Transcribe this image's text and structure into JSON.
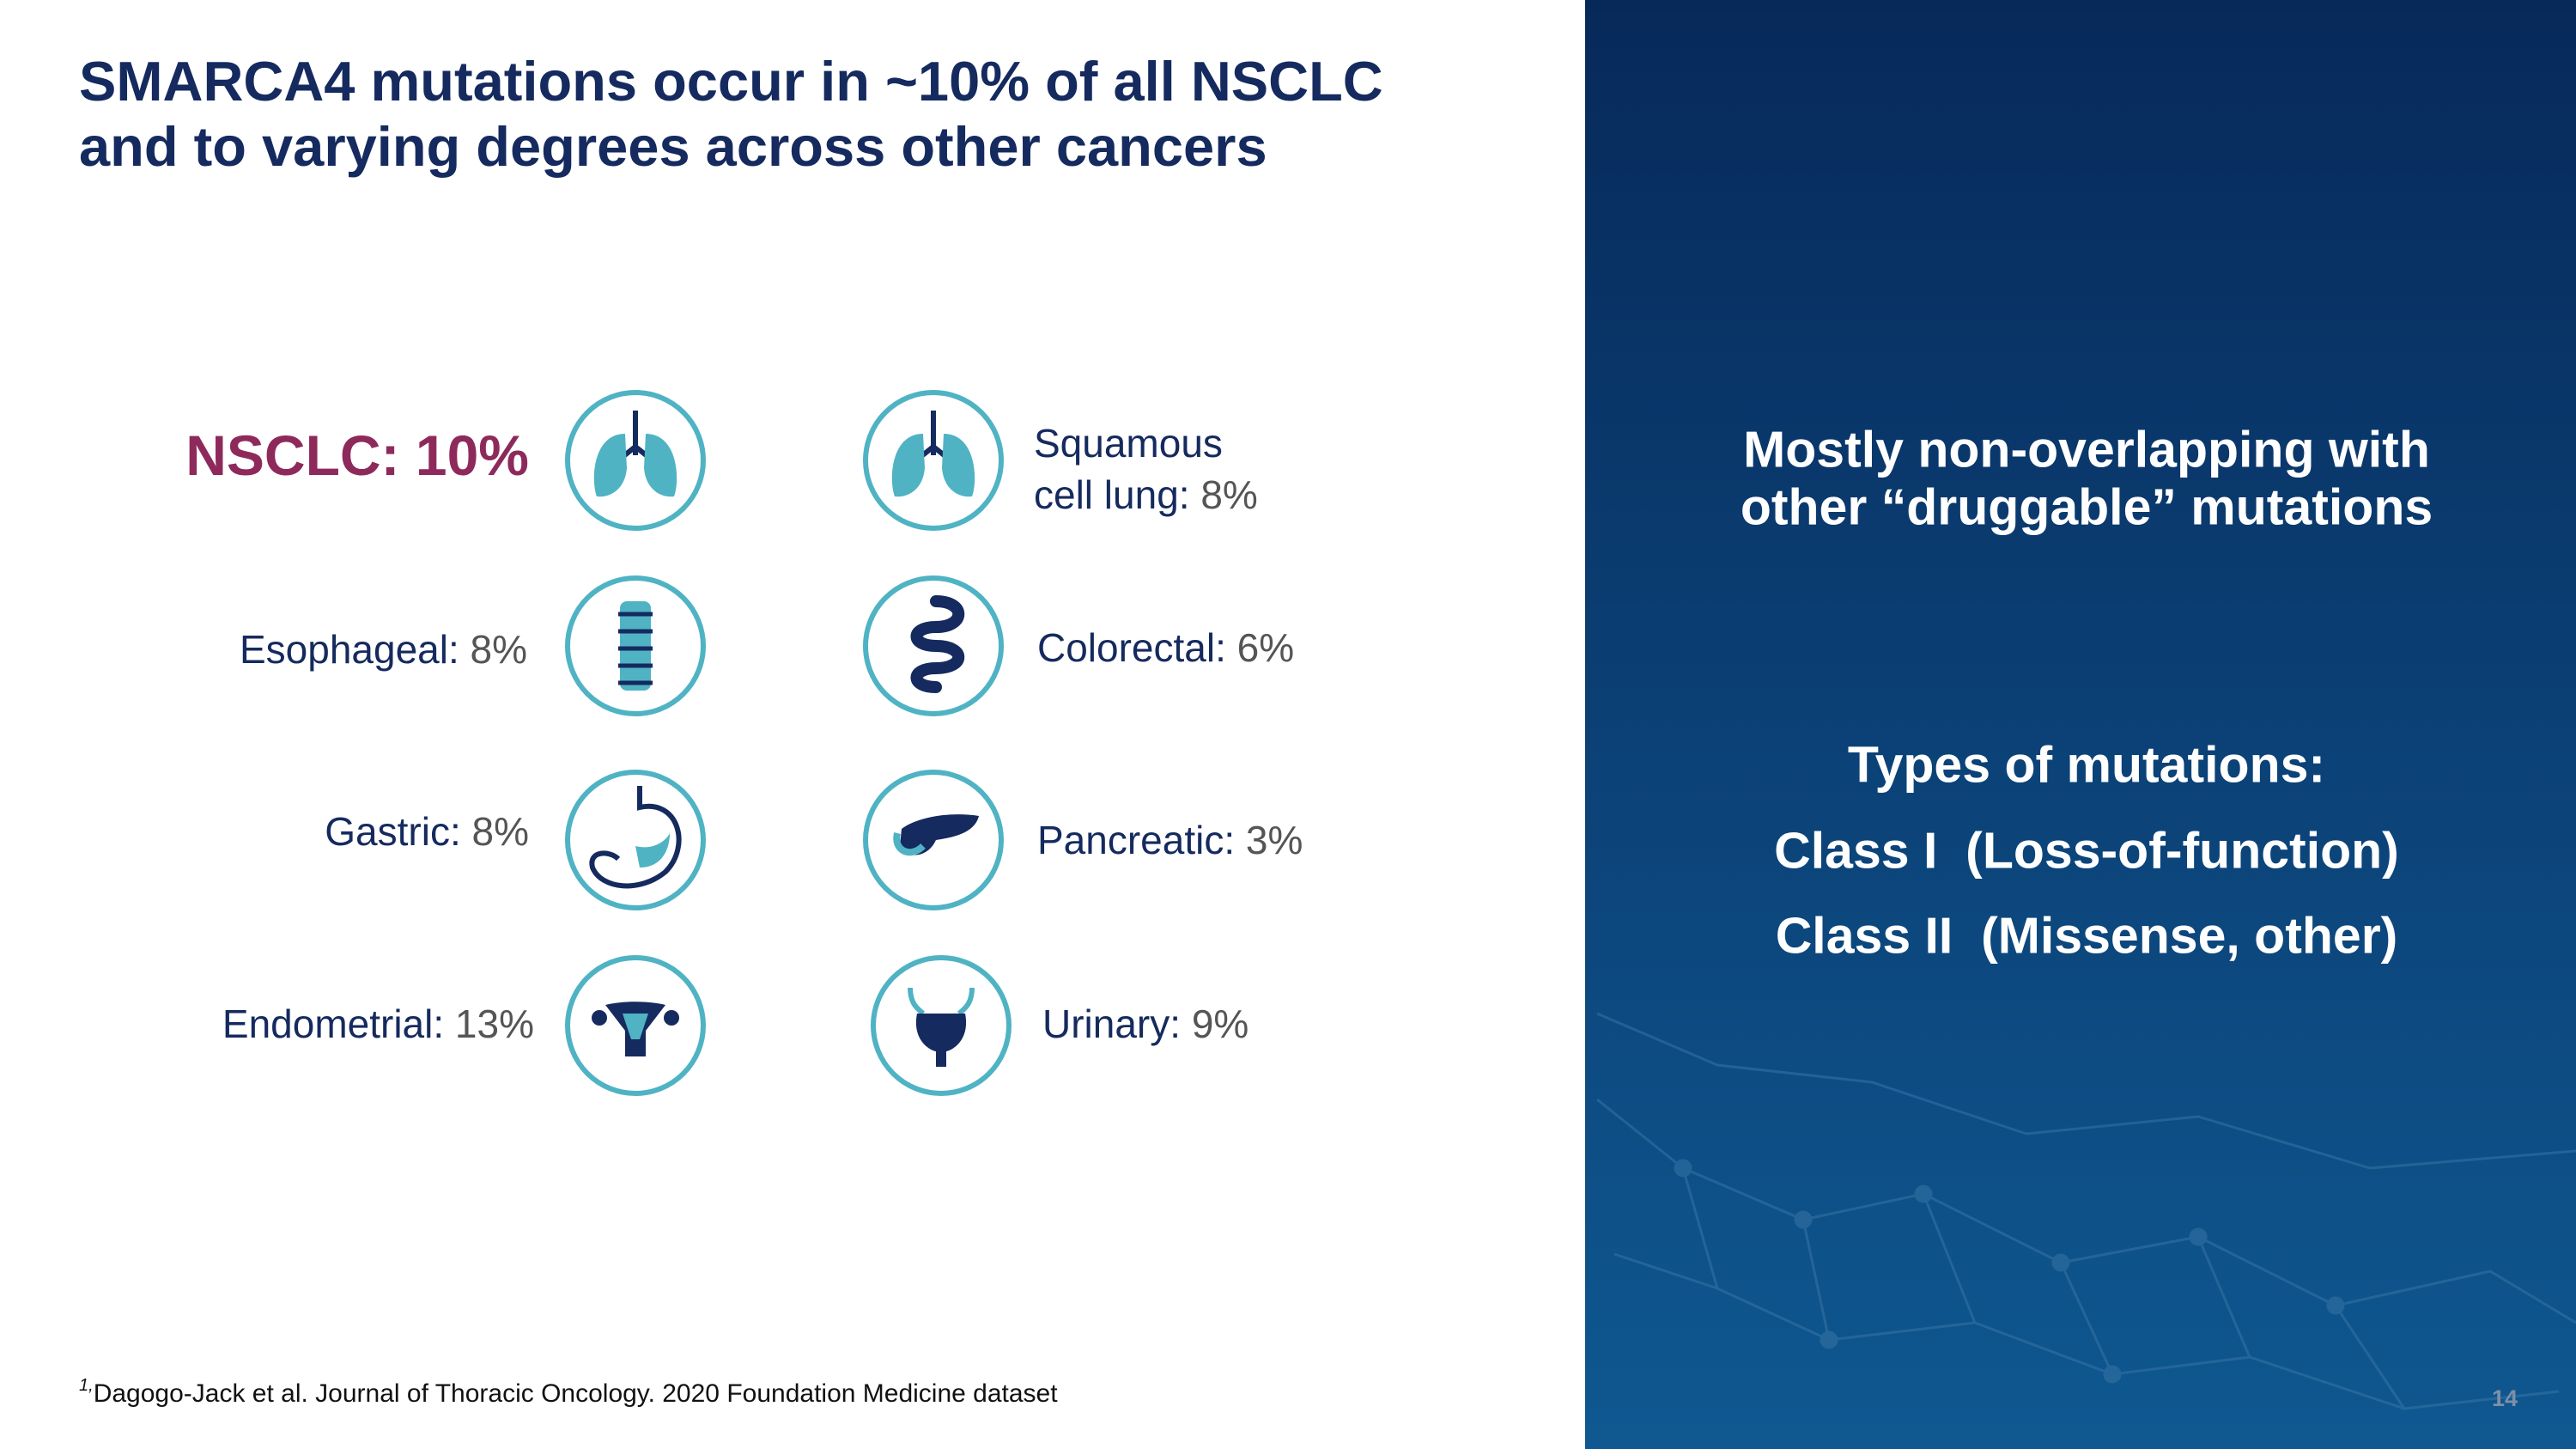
{
  "header": {
    "title_lines": [
      "SMARCA4 mutations occur in ~10% of all NSCLC",
      "and to varying degrees across other cancers"
    ]
  },
  "highlight": {
    "name": "NSCLC:",
    "value": "10%"
  },
  "left_items": [
    {
      "name": "Esophageal:",
      "value": "8%"
    },
    {
      "name": "Gastric:",
      "value": "8%"
    },
    {
      "name": "Endometrial:",
      "value": "13%"
    }
  ],
  "right_items": [
    {
      "name_lines": [
        "Squamous",
        "cell lung:"
      ],
      "value": "8%"
    },
    {
      "name": "Colorectal:",
      "value": "6%"
    },
    {
      "name": "Pancreatic:",
      "value": "3%"
    },
    {
      "name": "Urinary:",
      "value": "9%"
    }
  ],
  "panel": {
    "heading_lines": [
      "Mostly non-overlapping with",
      "other “druggable” mutations"
    ],
    "types_title": "Types of mutations:",
    "types": [
      "Class I  (Loss-of-function)",
      "Class II  (Missense, other)"
    ]
  },
  "footnote": {
    "marker": "1,",
    "text": "Dagogo-Jack et al. Journal of Thoracic Oncology. 2020 Foundation Medicine dataset"
  },
  "page_number": "14"
}
